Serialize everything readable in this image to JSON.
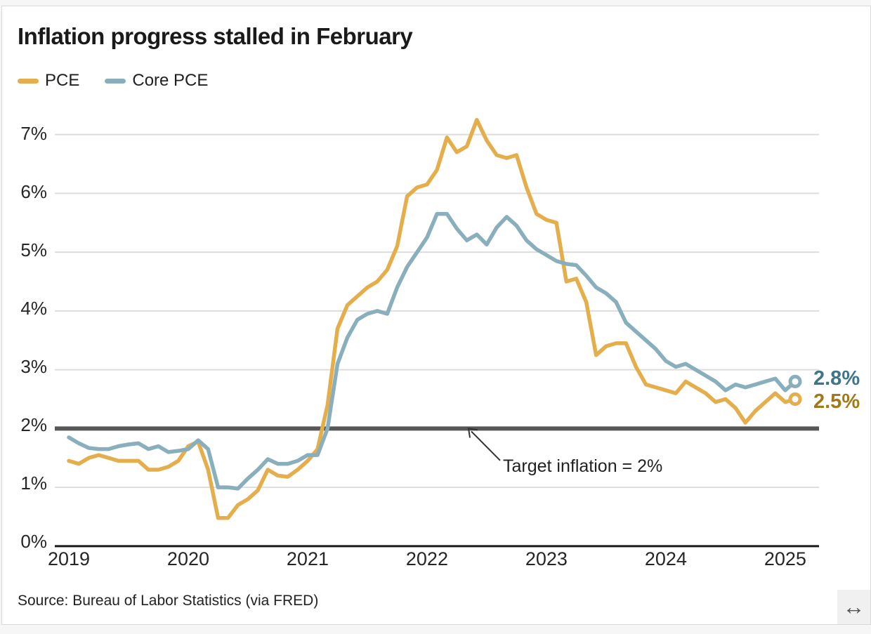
{
  "header": {
    "title": "Inflation progress stalled in February"
  },
  "legend": [
    {
      "label": "PCE",
      "color": "#e5ae4c"
    },
    {
      "label": "Core PCE",
      "color": "#8aafbc"
    }
  ],
  "chart_data": {
    "type": "line",
    "title": "Inflation progress stalled in February",
    "frequency": "monthly",
    "x_start": "2019-01",
    "x_end": "2025-02",
    "x_tick_labels": [
      "2019",
      "2020",
      "2021",
      "2022",
      "2023",
      "2024",
      "2025"
    ],
    "y_tick_labels": [
      "0%",
      "1%",
      "2%",
      "3%",
      "4%",
      "5%",
      "6%",
      "7%"
    ],
    "ylim": [
      0,
      7
    ],
    "grid": true,
    "legend_position": "top-left",
    "series": [
      {
        "name": "PCE",
        "color": "#e5ae4c",
        "end_label": "2.5%",
        "end_label_color": "#a07a1a",
        "values": [
          1.45,
          1.4,
          1.5,
          1.55,
          1.5,
          1.45,
          1.45,
          1.45,
          1.3,
          1.3,
          1.35,
          1.45,
          1.7,
          1.78,
          1.3,
          0.48,
          0.48,
          0.7,
          0.8,
          0.95,
          1.3,
          1.2,
          1.18,
          1.3,
          1.45,
          1.65,
          2.4,
          3.7,
          4.1,
          4.25,
          4.4,
          4.5,
          4.7,
          5.1,
          5.95,
          6.1,
          6.15,
          6.4,
          6.95,
          6.7,
          6.8,
          7.25,
          6.9,
          6.65,
          6.6,
          6.65,
          6.1,
          5.65,
          5.55,
          5.5,
          4.5,
          4.55,
          4.15,
          3.25,
          3.4,
          3.45,
          3.45,
          3.05,
          2.75,
          2.7,
          2.65,
          2.6,
          2.8,
          2.7,
          2.6,
          2.45,
          2.5,
          2.35,
          2.1,
          2.3,
          2.45,
          2.6,
          2.45,
          2.5
        ]
      },
      {
        "name": "Core PCE",
        "color": "#8aafbc",
        "end_label": "2.8%",
        "end_label_color": "#3f7589",
        "values": [
          1.85,
          1.75,
          1.67,
          1.65,
          1.65,
          1.7,
          1.73,
          1.75,
          1.65,
          1.7,
          1.6,
          1.62,
          1.65,
          1.8,
          1.65,
          1.0,
          1.0,
          0.98,
          1.15,
          1.3,
          1.48,
          1.4,
          1.4,
          1.45,
          1.55,
          1.55,
          2.0,
          3.1,
          3.55,
          3.85,
          3.95,
          4.0,
          3.95,
          4.4,
          4.75,
          5.0,
          5.25,
          5.65,
          5.65,
          5.4,
          5.2,
          5.3,
          5.13,
          5.42,
          5.6,
          5.45,
          5.2,
          5.05,
          4.95,
          4.85,
          4.8,
          4.78,
          4.6,
          4.4,
          4.3,
          4.15,
          3.8,
          3.65,
          3.5,
          3.35,
          3.15,
          3.05,
          3.1,
          3.0,
          2.9,
          2.8,
          2.65,
          2.75,
          2.7,
          2.75,
          2.8,
          2.85,
          2.65,
          2.8
        ]
      }
    ],
    "target_line": {
      "value": 2,
      "label": "Target inflation = 2%",
      "color": "#575757"
    },
    "colors": {
      "gridline": "#dddddd",
      "axis": "#1a1a1a",
      "tick_text": "#262626"
    }
  },
  "footer": {
    "source": "Source: Bureau of Labor Statistics (via FRED)",
    "resize_icon": "↔"
  }
}
